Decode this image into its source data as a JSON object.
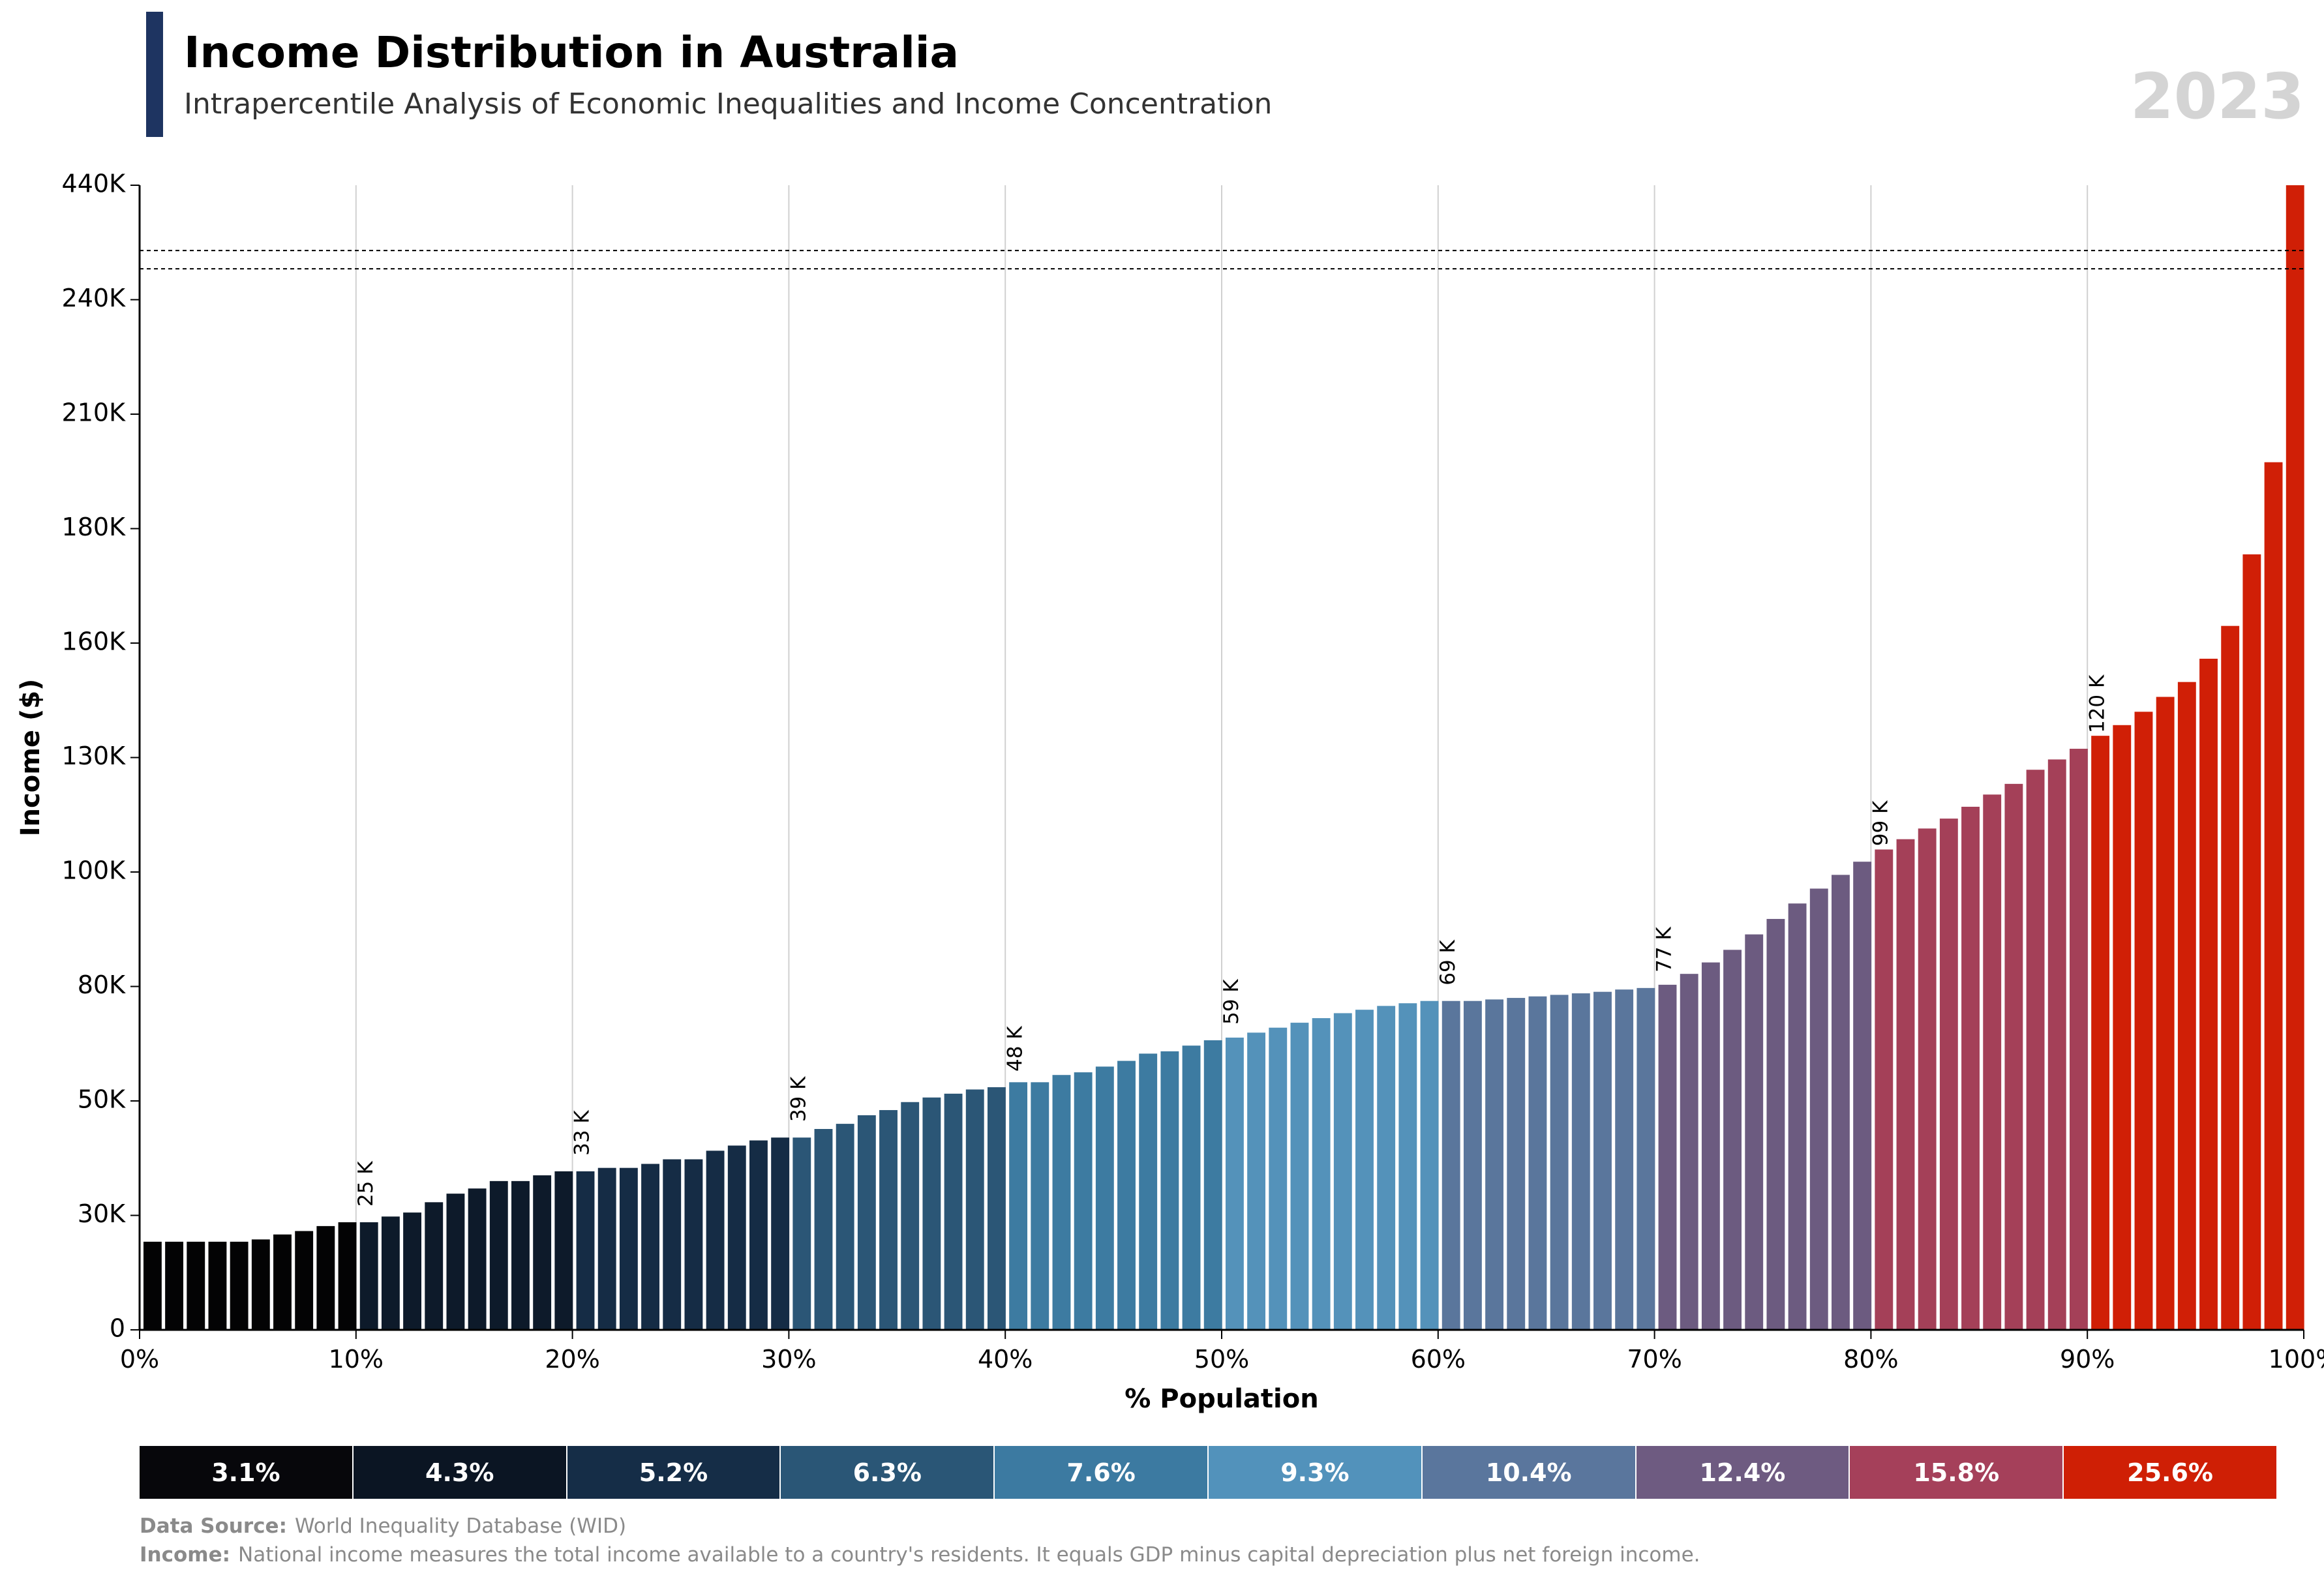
{
  "header": {
    "title": "Income Distribution in Australia",
    "subtitle": "Intrapercentile Analysis of Economic Inequalities and Income Concentration",
    "year": "2023"
  },
  "chart_data": {
    "type": "bar",
    "xlabel": "% Population",
    "ylabel": "Income ($)",
    "x_ticks": [
      "0%",
      "10%",
      "20%",
      "30%",
      "40%",
      "50%",
      "60%",
      "70%",
      "80%",
      "90%",
      "100%"
    ],
    "y_ticks": [
      {
        "value": 0,
        "label": "0"
      },
      {
        "value": 30000,
        "label": "30K"
      },
      {
        "value": 50000,
        "label": "50K"
      },
      {
        "value": 80000,
        "label": "80K"
      },
      {
        "value": 100000,
        "label": "100K"
      },
      {
        "value": 130000,
        "label": "130K"
      },
      {
        "value": 160000,
        "label": "160K"
      },
      {
        "value": 180000,
        "label": "180K"
      },
      {
        "value": 210000,
        "label": "210K"
      },
      {
        "value": 240000,
        "label": "240K"
      },
      {
        "value": 440000,
        "label": "440K"
      }
    ],
    "axis_break": true,
    "grid": "vertical lines at each decile",
    "percentiles": [
      1,
      2,
      3,
      4,
      5,
      6,
      7,
      8,
      9,
      10,
      11,
      12,
      13,
      14,
      15,
      16,
      17,
      18,
      19,
      20,
      21,
      22,
      23,
      24,
      25,
      26,
      27,
      28,
      29,
      30,
      31,
      32,
      33,
      34,
      35,
      36,
      37,
      38,
      39,
      40,
      41,
      42,
      43,
      44,
      45,
      46,
      47,
      48,
      49,
      50,
      51,
      52,
      53,
      54,
      55,
      56,
      57,
      58,
      59,
      60,
      61,
      62,
      63,
      64,
      65,
      66,
      67,
      68,
      69,
      70,
      71,
      72,
      73,
      74,
      75,
      76,
      77,
      78,
      79,
      80,
      81,
      82,
      83,
      84,
      85,
      86,
      87,
      88,
      89,
      90,
      91,
      92,
      93,
      94,
      95,
      96,
      97,
      98,
      99,
      100
    ],
    "values": [
      23100,
      23100,
      23100,
      23100,
      23100,
      23700,
      25000,
      25900,
      27200,
      28200,
      28200,
      29700,
      30500,
      32300,
      33800,
      34700,
      36000,
      36000,
      37000,
      37700,
      37700,
      38300,
      38300,
      39000,
      39800,
      39800,
      41300,
      42200,
      43100,
      43600,
      43600,
      45100,
      46000,
      47500,
      48400,
      49800,
      50900,
      51900,
      53000,
      53600,
      54900,
      54900,
      56800,
      57500,
      59000,
      60500,
      62400,
      63000,
      64500,
      65900,
      66600,
      67900,
      69200,
      70500,
      71700,
      73000,
      73900,
      74900,
      75600,
      76200,
      76200,
      76200,
      76600,
      77000,
      77400,
      77800,
      78200,
      78600,
      79200,
      79600,
      80300,
      82200,
      84200,
      86400,
      89100,
      91800,
      94500,
      97100,
      99500,
      102700,
      105900,
      108600,
      111400,
      114000,
      117100,
      120300,
      123100,
      126800,
      129500,
      132300,
      135700,
      138500,
      142000,
      145900,
      149800,
      155900,
      163000,
      175500,
      197400,
      440000
    ],
    "decile_labels": [
      {
        "percentile": 10,
        "label": "25 K"
      },
      {
        "percentile": 20,
        "label": "33 K"
      },
      {
        "percentile": 30,
        "label": "39 K"
      },
      {
        "percentile": 40,
        "label": "48 K"
      },
      {
        "percentile": 50,
        "label": "59 K"
      },
      {
        "percentile": 60,
        "label": "69 K"
      },
      {
        "percentile": 70,
        "label": "77 K"
      },
      {
        "percentile": 80,
        "label": "99 K"
      },
      {
        "percentile": 90,
        "label": "120 K"
      }
    ],
    "decile_colors": [
      "#030304",
      "#0d1a2a",
      "#152c45",
      "#2b5676",
      "#3d7ba1",
      "#5492ba",
      "#5a769c",
      "#6c5b80",
      "#a44058",
      "#d01f06"
    ]
  },
  "decile_shares": [
    {
      "label": "3.1%",
      "color": "#07070b"
    },
    {
      "label": "4.3%",
      "color": "#0b1523"
    },
    {
      "label": "5.2%",
      "color": "#152d47"
    },
    {
      "label": "6.3%",
      "color": "#2a5676"
    },
    {
      "label": "7.6%",
      "color": "#3c7aa1"
    },
    {
      "label": "9.3%",
      "color": "#5292bb"
    },
    {
      "label": "10.4%",
      "color": "#5a769d"
    },
    {
      "label": "12.4%",
      "color": "#6e5b81"
    },
    {
      "label": "15.8%",
      "color": "#a5405a"
    },
    {
      "label": "25.6%",
      "color": "#cf1f05"
    }
  ],
  "notes": {
    "source_label": "Data Source:",
    "source_text": "World Inequality Database (WID)",
    "income_label": "Income:",
    "income_text": "National income measures the total income available to a country's residents. It equals GDP minus capital depreciation plus net foreign income."
  }
}
